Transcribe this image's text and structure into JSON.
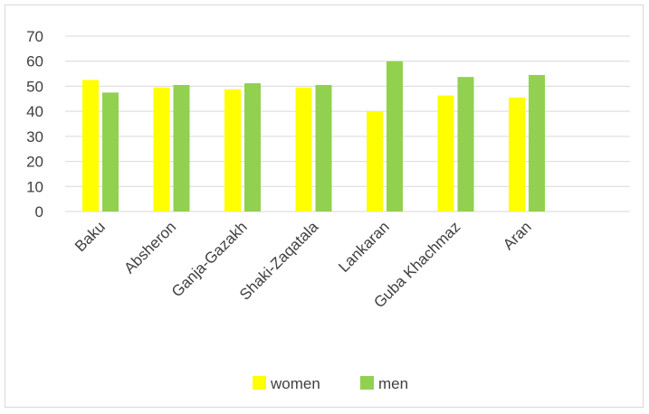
{
  "chart_data": {
    "type": "bar",
    "title": "",
    "xlabel": "",
    "ylabel": "",
    "categories": [
      "Baku",
      "Absheron",
      "Ganja-Gazakh",
      "Shaki-Zaqatala",
      "Lankaran",
      "Guba Khachmaz",
      "Aran"
    ],
    "series": [
      {
        "name": "women",
        "color": "#ffff00",
        "values": [
          52.5,
          49.5,
          48.8,
          49.5,
          40,
          46.3,
          45.5
        ]
      },
      {
        "name": "men",
        "color": "#92d050",
        "values": [
          47.5,
          50.5,
          51.2,
          50.5,
          60,
          53.7,
          54.5
        ]
      }
    ],
    "ylim": [
      0,
      70
    ],
    "yticks": [
      0,
      10,
      20,
      30,
      40,
      50,
      60,
      70
    ],
    "grid": true,
    "legend_position": "bottom"
  }
}
